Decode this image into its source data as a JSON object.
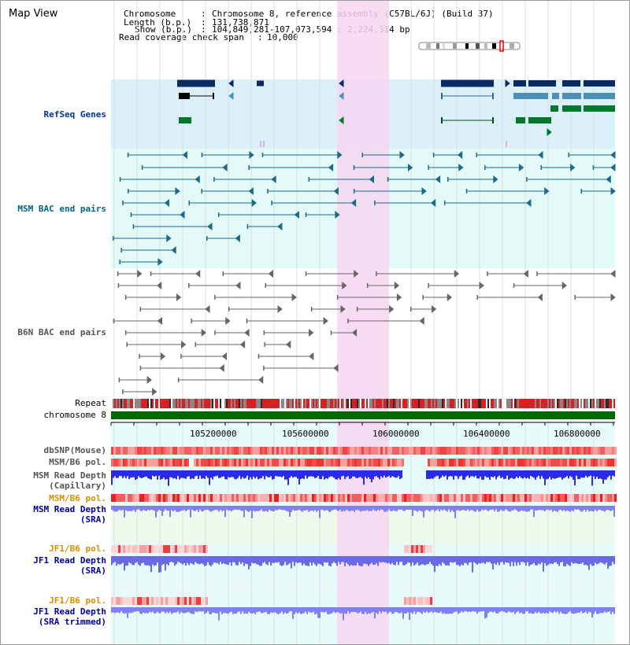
{
  "view_title": "Map View",
  "info": {
    "chromosome_label": "Chromosome",
    "chromosome_value": "Chromosome 8, reference assembly (C57BL/6J) (Build 37)",
    "length_label": "Length (b.p.)",
    "length_value": "131,738,871",
    "show_label": "Show (b.p.)",
    "show_value": "104,849,281-107,073,594 : 2,224,314 bp",
    "coverage_label": "Read coverage check span",
    "coverage_value": "10,000"
  },
  "tracks": {
    "refseq": "RefSeq Genes",
    "msm_bac": "MSM BAC end pairs",
    "b6n_bac": "B6N BAC end pairs",
    "repeat": "Repeat",
    "chromosome": "chromosome 8",
    "dbsnp": "dbSNP(Mouse)",
    "msm_b6_pol": "MSM/B6 pol.",
    "msm_read_depth_cap_1": "MSM Read Depth",
    "msm_read_depth_cap_2": "(Capillary)",
    "msm_b6_pol_sra": "MSM/B6 pol.",
    "msm_read_depth_sra_1": "MSM Read Depth",
    "msm_read_depth_sra_2": "(SRA)",
    "jf1_b6_pol_1": "JF1/B6 pol.",
    "jf1_read_depth_sra_1": "JF1 Read Depth",
    "jf1_read_depth_sra_2": "(SRA)",
    "jf1_b6_pol_2": "JF1/B6 pol.",
    "jf1_read_depth_trim_1": "JF1 Read Depth",
    "jf1_read_depth_trim_2": "(SRA trimmed)"
  },
  "ruler_ticks": [
    "105200000",
    "105600000",
    "106000000",
    "106400000",
    "106800000"
  ],
  "colors": {
    "highlight": "#f7d6f2",
    "refseq_bg": "#dcf0fa",
    "msm_bg": "#e4faf8",
    "chromosome_bar": "#006a00",
    "dbsnp": "#ee5555",
    "read_depth": "#2a2aee",
    "read_depth_light": "#8080ee"
  }
}
